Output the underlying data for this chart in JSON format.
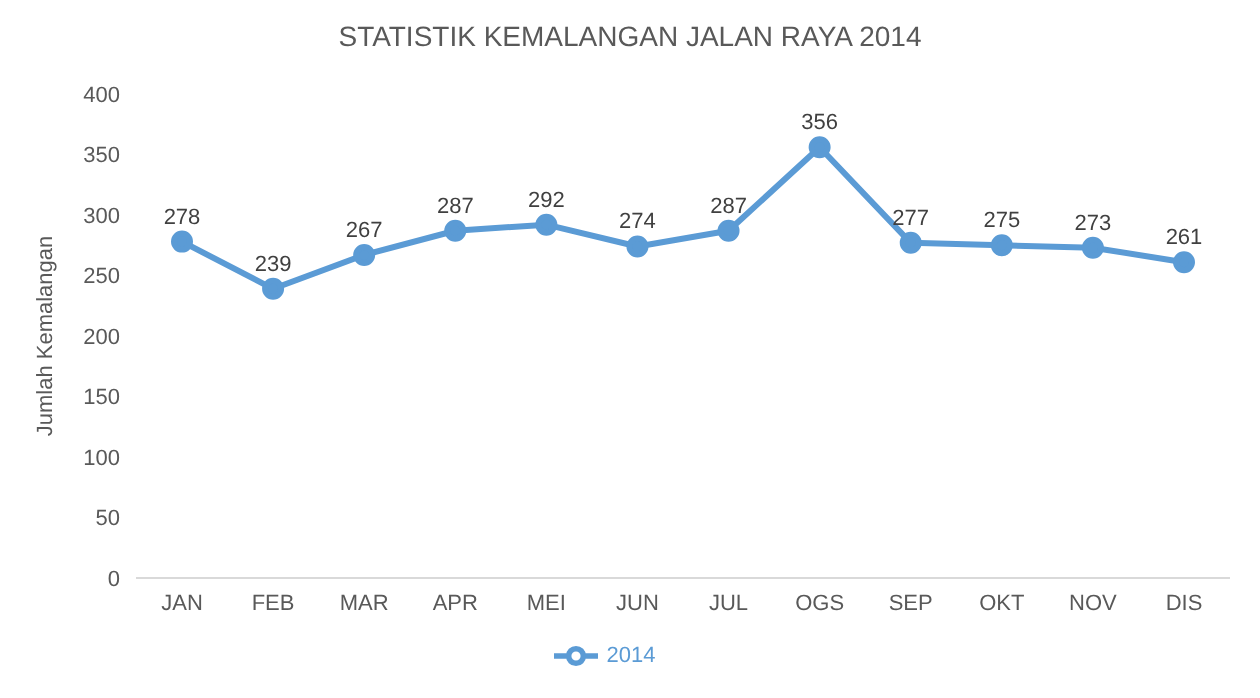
{
  "chart_data": {
    "type": "line",
    "title": "STATISTIK KEMALANGAN JALAN RAYA 2014",
    "ylabel": "Jumlah Kemalangan",
    "categories": [
      "JAN",
      "FEB",
      "MAR",
      "APR",
      "MEI",
      "JUN",
      "JUL",
      "OGS",
      "SEP",
      "OKT",
      "NOV",
      "DIS"
    ],
    "series": [
      {
        "name": "2014",
        "color": "#5b9bd5",
        "values": [
          278,
          239,
          267,
          287,
          292,
          274,
          287,
          356,
          277,
          275,
          273,
          261
        ]
      }
    ],
    "ylim": [
      0,
      400
    ],
    "yticks": [
      0,
      50,
      100,
      150,
      200,
      250,
      300,
      350,
      400
    ],
    "grid": false,
    "legend": "bottom",
    "marker": "circle",
    "line_style": "solid",
    "data_labels": true
  }
}
